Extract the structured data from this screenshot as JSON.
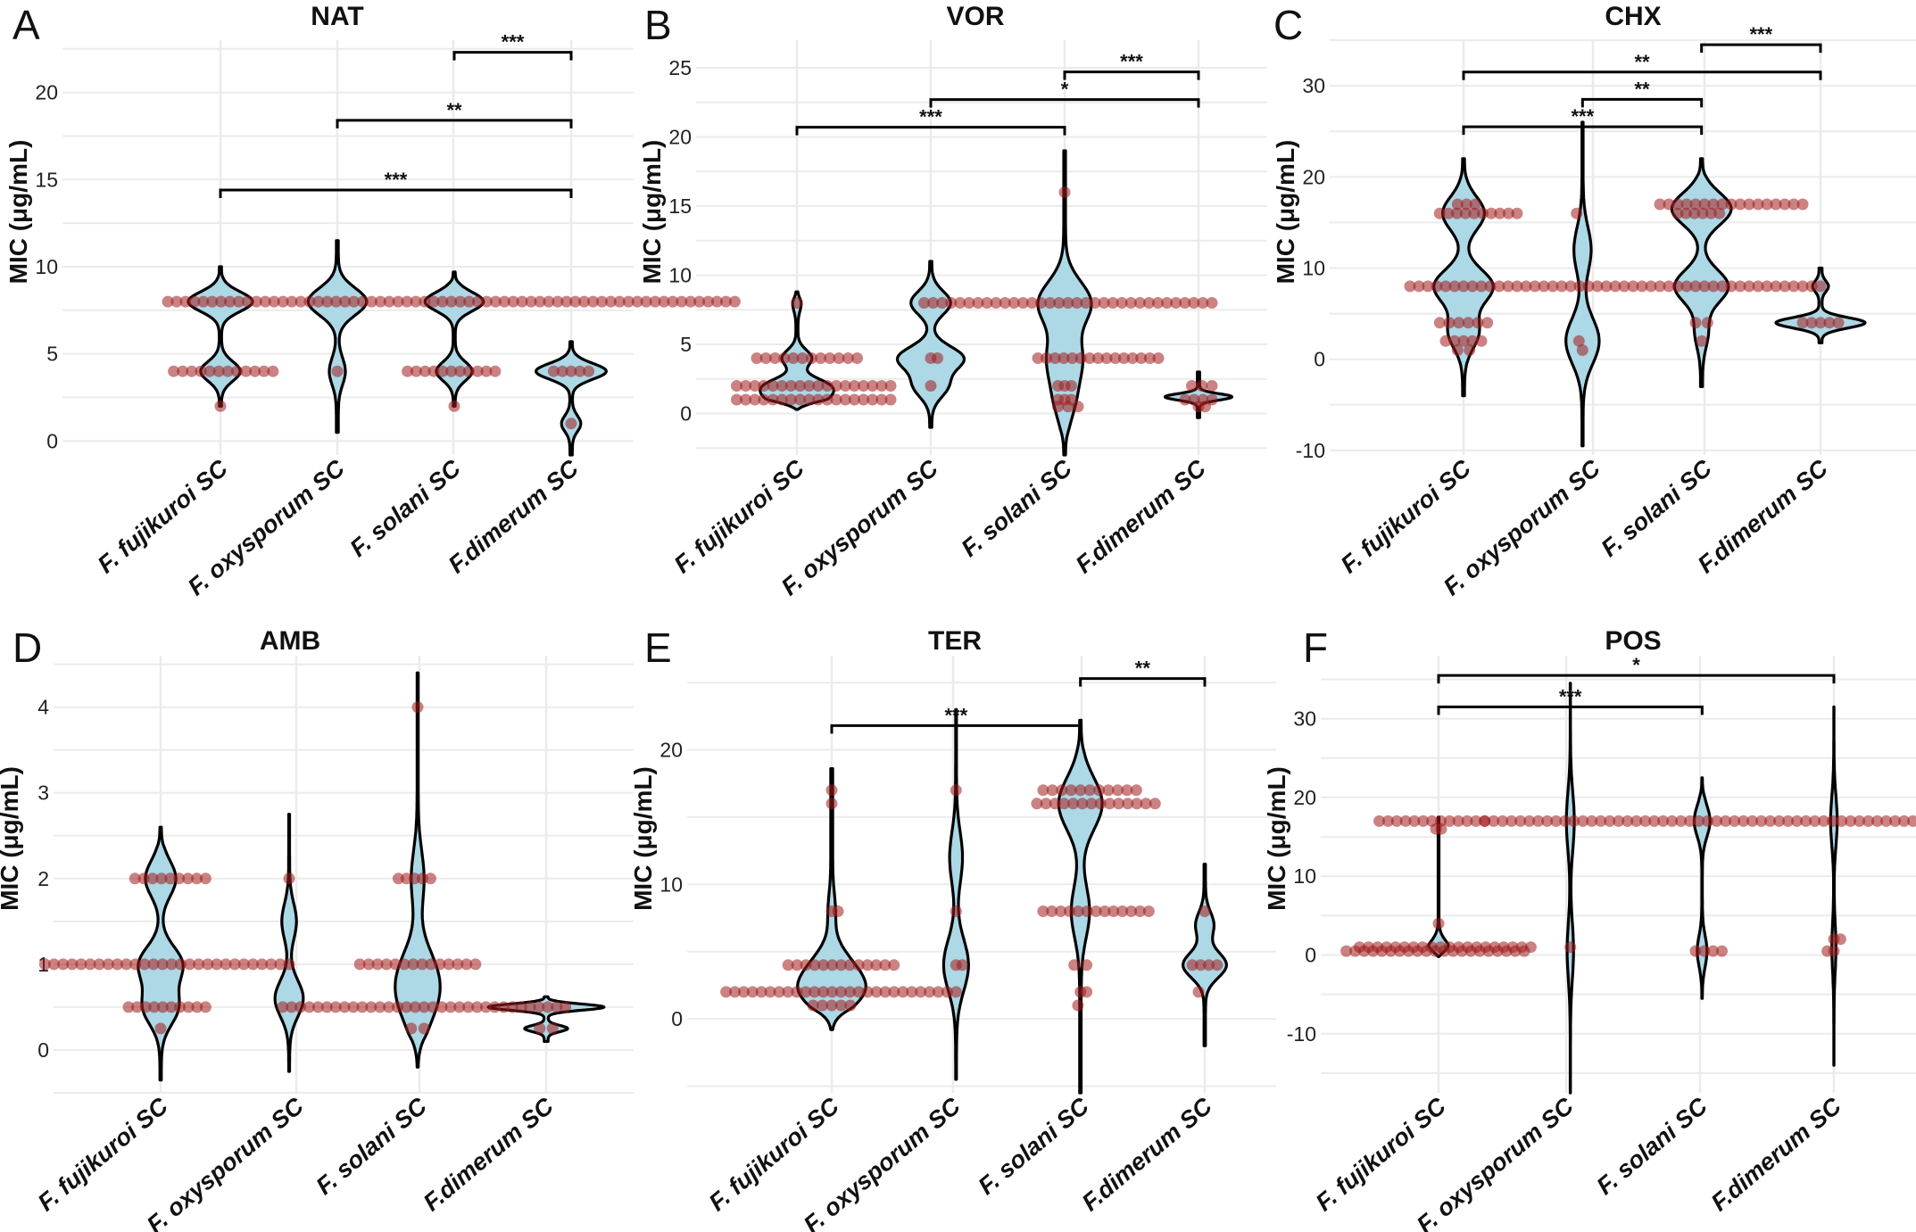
{
  "figure": {
    "point_color": "#a01c1c",
    "violin_fill": "#add8e6",
    "outline_color": "#000000",
    "grid_color": "#ebebeb"
  },
  "chart_data": [
    {
      "type": "violin",
      "panel": "A",
      "title": "NAT",
      "ylabel": "MIC (μg/mL)",
      "categories": [
        "F. fujikuroi SC",
        "F. oxysporum SC",
        "F. solani SC",
        "F.dimerum SC"
      ],
      "ylim": [
        -0.8,
        23
      ],
      "yticks": [
        0,
        5,
        10,
        15,
        20
      ],
      "violins": [
        {
          "min": 2,
          "max": 10,
          "modes": [
            [
              8,
              1.0
            ],
            [
              4,
              0.6
            ]
          ],
          "width": 0.55
        },
        {
          "min": 0.5,
          "max": 11.5,
          "modes": [
            [
              8,
              1.0
            ],
            [
              4,
              0.25
            ]
          ],
          "width": 0.5
        },
        {
          "min": 2,
          "max": 9.7,
          "modes": [
            [
              8,
              1.0
            ],
            [
              4,
              0.6
            ]
          ],
          "width": 0.5
        },
        {
          "min": -0.8,
          "max": 5.7,
          "modes": [
            [
              4,
              1.0
            ],
            [
              1,
              0.25
            ]
          ],
          "width": 0.6
        }
      ],
      "points": [
        {
          "value": 8,
          "xmin": -0.45,
          "xmax": 4.4
        },
        {
          "value": 4,
          "xmin": -0.4,
          "xmax": 0.45
        },
        {
          "value": 2,
          "xmin": 0,
          "xmax": 0
        },
        {
          "value": 4,
          "xmin": 1.0,
          "xmax": 1.0
        },
        {
          "value": 4,
          "xmin": 1.6,
          "xmax": 2.35
        },
        {
          "value": 2,
          "xmin": 2.0,
          "xmax": 2.0
        },
        {
          "value": 4,
          "xmin": 2.85,
          "xmax": 3.15
        },
        {
          "value": 1,
          "xmin": 3.0,
          "xmax": 3.0
        }
      ],
      "comparisons": [
        {
          "from": 2,
          "to": 3,
          "y": 22.3,
          "label": "***"
        },
        {
          "from": 1,
          "to": 3,
          "y": 18.4,
          "label": "**"
        },
        {
          "from": 0,
          "to": 3,
          "y": 14.4,
          "label": "***"
        }
      ]
    },
    {
      "type": "violin",
      "panel": "B",
      "title": "VOR",
      "ylabel": "MIC (μg/mL)",
      "categories": [
        "F. fujikuroi SC",
        "F. oxysporum SC",
        "F. solani SC",
        "F.dimerum SC"
      ],
      "ylim": [
        -3,
        27
      ],
      "yticks": [
        0,
        5,
        10,
        15,
        20,
        25
      ],
      "violins": [
        {
          "min": 0.3,
          "max": 8.8,
          "modes": [
            [
              2,
              1.0
            ],
            [
              1,
              0.8
            ],
            [
              4,
              0.5
            ],
            [
              8,
              0.12
            ]
          ],
          "width": 0.55
        },
        {
          "min": -1,
          "max": 11,
          "modes": [
            [
              8,
              0.6
            ],
            [
              4,
              1.0
            ],
            [
              2,
              0.5
            ]
          ],
          "width": 0.5
        },
        {
          "min": -3,
          "max": 19,
          "modes": [
            [
              8,
              1.0
            ],
            [
              4,
              0.6
            ],
            [
              1,
              0.35
            ]
          ],
          "width": 0.4
        },
        {
          "min": -0.3,
          "max": 3,
          "modes": [
            [
              1.2,
              1.0
            ]
          ],
          "width": 0.5
        }
      ],
      "points": [
        {
          "value": 2,
          "xmin": -0.45,
          "xmax": 0.7
        },
        {
          "value": 1,
          "xmin": -0.45,
          "xmax": 0.7
        },
        {
          "value": 4,
          "xmin": -0.3,
          "xmax": 0.45
        },
        {
          "value": 8,
          "xmin": 0.0,
          "xmax": 0.0
        },
        {
          "value": 8,
          "xmin": 0.95,
          "xmax": 3.1
        },
        {
          "value": 4,
          "xmin": 1.0,
          "xmax": 1.05
        },
        {
          "value": 2,
          "xmin": 1.0,
          "xmax": 1.0
        },
        {
          "value": 4,
          "xmin": 1.8,
          "xmax": 2.7
        },
        {
          "value": 16,
          "xmin": 2.0,
          "xmax": 2.0
        },
        {
          "value": 2,
          "xmin": 1.95,
          "xmax": 2.05
        },
        {
          "value": 1,
          "xmin": 1.95,
          "xmax": 2.05
        },
        {
          "value": 0.5,
          "xmin": 1.95,
          "xmax": 2.1
        },
        {
          "value": 2,
          "xmin": 2.95,
          "xmax": 3.1
        },
        {
          "value": 1,
          "xmin": 2.9,
          "xmax": 3.1
        },
        {
          "value": 0.5,
          "xmin": 3.0,
          "xmax": 3.05
        }
      ],
      "comparisons": [
        {
          "from": 2,
          "to": 3,
          "y": 24.7,
          "label": "***"
        },
        {
          "from": 1,
          "to": 3,
          "y": 22.7,
          "label": "*"
        },
        {
          "from": 0,
          "to": 2,
          "y": 20.7,
          "label": "***"
        }
      ]
    },
    {
      "type": "violin",
      "panel": "C",
      "title": "CHX",
      "ylabel": "MIC (μg/mL)",
      "categories": [
        "F. fujikuroi SC",
        "F. oxysporum SC",
        "F. solani SC",
        "F.dimerum SC"
      ],
      "ylim": [
        -10.5,
        35
      ],
      "yticks": [
        -10,
        0,
        10,
        20,
        30
      ],
      "violins": [
        {
          "min": -4,
          "max": 22,
          "modes": [
            [
              16,
              0.7
            ],
            [
              8,
              1.0
            ],
            [
              3,
              0.5
            ]
          ],
          "width": 0.5
        },
        {
          "min": -9.5,
          "max": 26,
          "modes": [
            [
              2,
              1.0
            ],
            [
              12,
              0.5
            ]
          ],
          "width": 0.28
        },
        {
          "min": -3,
          "max": 22,
          "modes": [
            [
              16.5,
              1.0
            ],
            [
              8,
              0.9
            ],
            [
              3,
              0.2
            ]
          ],
          "width": 0.5
        },
        {
          "min": 1.8,
          "max": 10,
          "modes": [
            [
              4,
              1.0
            ],
            [
              8,
              0.15
            ]
          ],
          "width": 0.75
        }
      ],
      "points": [
        {
          "value": 8,
          "xmin": -0.45,
          "xmax": 3.0
        },
        {
          "value": 16,
          "xmin": -0.2,
          "xmax": 0.45
        },
        {
          "value": 17,
          "xmin": -0.05,
          "xmax": 0.1
        },
        {
          "value": 4,
          "xmin": -0.2,
          "xmax": 0.2
        },
        {
          "value": 2,
          "xmin": -0.15,
          "xmax": 0.15
        },
        {
          "value": 1,
          "xmin": -0.05,
          "xmax": 0.05
        },
        {
          "value": 16,
          "xmin": 0.95,
          "xmax": 0.95
        },
        {
          "value": 2,
          "xmin": 0.97,
          "xmax": 1.0
        },
        {
          "value": 1,
          "xmin": 1.0,
          "xmax": 1.0
        },
        {
          "value": 17,
          "xmin": 1.65,
          "xmax": 2.85
        },
        {
          "value": 16,
          "xmin": 1.8,
          "xmax": 2.15
        },
        {
          "value": 4,
          "xmin": 1.95,
          "xmax": 2.05
        },
        {
          "value": 2,
          "xmin": 2.0,
          "xmax": 2.0
        },
        {
          "value": 4,
          "xmin": 2.85,
          "xmax": 3.15
        }
      ],
      "comparisons": [
        {
          "from": 2,
          "to": 3,
          "y": 34.5,
          "label": "***"
        },
        {
          "from": 0,
          "to": 3,
          "y": 31.5,
          "label": "**"
        },
        {
          "from": 1,
          "to": 2,
          "y": 28.5,
          "label": "**"
        },
        {
          "from": 0,
          "to": 2,
          "y": 25.5,
          "label": "***"
        }
      ]
    },
    {
      "type": "violin",
      "panel": "D",
      "title": "AMB",
      "ylabel": "MIC (μg/mL)",
      "categories": [
        "F. fujikuroi SC",
        "F. oxysporum SC",
        "F. solani SC",
        "F.dimerum SC"
      ],
      "ylim": [
        -0.5,
        4.6
      ],
      "yticks": [
        0,
        1,
        2,
        3,
        4
      ],
      "violins": [
        {
          "min": -0.35,
          "max": 2.6,
          "modes": [
            [
              2,
              0.7
            ],
            [
              1,
              1.0
            ],
            [
              0.5,
              0.8
            ]
          ],
          "width": 0.35
        },
        {
          "min": -0.25,
          "max": 2.75,
          "modes": [
            [
              0.6,
              1.0
            ],
            [
              1.5,
              0.5
            ]
          ],
          "width": 0.22
        },
        {
          "min": -0.2,
          "max": 4.4,
          "modes": [
            [
              0.9,
              1.0
            ],
            [
              0.5,
              0.8
            ],
            [
              2,
              0.4
            ]
          ],
          "width": 0.35
        },
        {
          "min": 0.1,
          "max": 0.62,
          "modes": [
            [
              0.5,
              1.0
            ],
            [
              0.25,
              0.35
            ]
          ],
          "width": 0.9
        }
      ],
      "points": [
        {
          "value": 2,
          "xmin": -0.2,
          "xmax": 0.35
        },
        {
          "value": 1,
          "xmin": -0.9,
          "xmax": 1.0
        },
        {
          "value": 0.5,
          "xmin": -0.25,
          "xmax": 0.35
        },
        {
          "value": 0.25,
          "xmin": 0.0,
          "xmax": 0.0
        },
        {
          "value": 2,
          "xmin": 1.0,
          "xmax": 1.0
        },
        {
          "value": 0.5,
          "xmin": 0.95,
          "xmax": 3.15
        },
        {
          "value": 2,
          "xmin": 1.85,
          "xmax": 2.1
        },
        {
          "value": 1,
          "xmin": 1.55,
          "xmax": 2.45
        },
        {
          "value": 0.25,
          "xmin": 1.95,
          "xmax": 2.05
        },
        {
          "value": 4,
          "xmin": 2.0,
          "xmax": 2.0
        },
        {
          "value": 0.25,
          "xmin": 2.95,
          "xmax": 3.05
        }
      ],
      "comparisons": []
    },
    {
      "type": "violin",
      "panel": "E",
      "title": "TER",
      "ylabel": "MIC (μg/mL)",
      "categories": [
        "F. fujikuroi SC",
        "F. oxysporum SC",
        "F. solani SC",
        "F.dimerum SC"
      ],
      "ylim": [
        -5.5,
        27
      ],
      "yticks": [
        0,
        10,
        20
      ],
      "violins": [
        {
          "min": -0.8,
          "max": 18.6,
          "modes": [
            [
              2,
              1.0
            ],
            [
              4,
              0.5
            ],
            [
              8,
              0.1
            ]
          ],
          "width": 0.55
        },
        {
          "min": -4.5,
          "max": 23,
          "modes": [
            [
              4,
              1.0
            ],
            [
              12,
              0.5
            ]
          ],
          "width": 0.2
        },
        {
          "min": -5.5,
          "max": 22.2,
          "modes": [
            [
              16,
              1.0
            ],
            [
              8,
              0.4
            ]
          ],
          "width": 0.35
        },
        {
          "min": -2,
          "max": 11.5,
          "modes": [
            [
              4,
              1.0
            ],
            [
              7,
              0.4
            ]
          ],
          "width": 0.35
        }
      ],
      "points": [
        {
          "value": 2,
          "xmin": -0.85,
          "xmax": 1.0
        },
        {
          "value": 4,
          "xmin": -0.35,
          "xmax": 0.5
        },
        {
          "value": 8,
          "xmin": 0.0,
          "xmax": 0.05
        },
        {
          "value": 16,
          "xmin": 0.0,
          "xmax": 0.0
        },
        {
          "value": 17,
          "xmin": 0.0,
          "xmax": 0.0
        },
        {
          "value": 1,
          "xmin": -0.15,
          "xmax": 0.15
        },
        {
          "value": 17,
          "xmin": 1.0,
          "xmax": 1.0
        },
        {
          "value": 8,
          "xmin": 1.0,
          "xmax": 1.0
        },
        {
          "value": 4,
          "xmin": 1.0,
          "xmax": 1.05
        },
        {
          "value": 17,
          "xmin": 1.7,
          "xmax": 2.45
        },
        {
          "value": 16,
          "xmin": 1.65,
          "xmax": 2.6
        },
        {
          "value": 8,
          "xmin": 1.7,
          "xmax": 2.55
        },
        {
          "value": 4,
          "xmin": 1.95,
          "xmax": 2.05
        },
        {
          "value": 2,
          "xmin": 2.0,
          "xmax": 2.05
        },
        {
          "value": 1,
          "xmin": 1.98,
          "xmax": 1.98
        },
        {
          "value": 8,
          "xmin": 3.0,
          "xmax": 3.0
        },
        {
          "value": 4,
          "xmin": 2.9,
          "xmax": 3.1
        },
        {
          "value": 2,
          "xmin": 2.95,
          "xmax": 2.95
        }
      ],
      "comparisons": [
        {
          "from": 2,
          "to": 3,
          "y": 25.3,
          "label": "**"
        },
        {
          "from": 0,
          "to": 2,
          "y": 21.8,
          "label": "***"
        }
      ]
    },
    {
      "type": "violin",
      "panel": "F",
      "title": "POS",
      "ylabel": "MIC (μg/mL)",
      "categories": [
        "F. fujikuroi SC",
        "F. oxysporum SC",
        "F. solani SC",
        "F.dimerum SC"
      ],
      "ylim": [
        -17.5,
        38
      ],
      "yticks": [
        -10,
        0,
        10,
        20,
        30
      ],
      "violins": [
        {
          "min": -0.2,
          "max": 17.5,
          "modes": [
            [
              0.5,
              1.0
            ]
          ],
          "width": 0.15
        },
        {
          "min": -17.5,
          "max": 34.5,
          "modes": [
            [
              17,
              1.0
            ],
            [
              0.5,
              0.8
            ]
          ],
          "width": 0.06
        },
        {
          "min": -5.5,
          "max": 22.5,
          "modes": [
            [
              17,
              1.0
            ],
            [
              0.5,
              0.6
            ]
          ],
          "width": 0.12
        },
        {
          "min": -14,
          "max": 31.5,
          "modes": [
            [
              17,
              1.0
            ],
            [
              1,
              0.6
            ]
          ],
          "width": 0.05
        }
      ],
      "points": [
        {
          "value": 17,
          "xmin": -0.45,
          "xmax": 0.35
        },
        {
          "value": 16,
          "xmin": -0.02,
          "xmax": 0.02
        },
        {
          "value": 4,
          "xmin": 0.0,
          "xmax": 0.0
        },
        {
          "value": 1,
          "xmin": -0.6,
          "xmax": 0.7
        },
        {
          "value": 0.5,
          "xmin": -0.7,
          "xmax": 0.65
        },
        {
          "value": 17,
          "xmin": 0.35,
          "xmax": 3.6
        },
        {
          "value": 1,
          "xmin": 1.0,
          "xmax": 1.0
        },
        {
          "value": 0.5,
          "xmin": 1.95,
          "xmax": 2.15
        },
        {
          "value": 2,
          "xmin": 3.0,
          "xmax": 3.05
        },
        {
          "value": 0.5,
          "xmin": 2.95,
          "xmax": 3.0
        }
      ],
      "comparisons": [
        {
          "from": 0,
          "to": 3,
          "y": 35.5,
          "label": "*"
        },
        {
          "from": 0,
          "to": 2,
          "y": 31.5,
          "label": "***"
        }
      ]
    }
  ]
}
